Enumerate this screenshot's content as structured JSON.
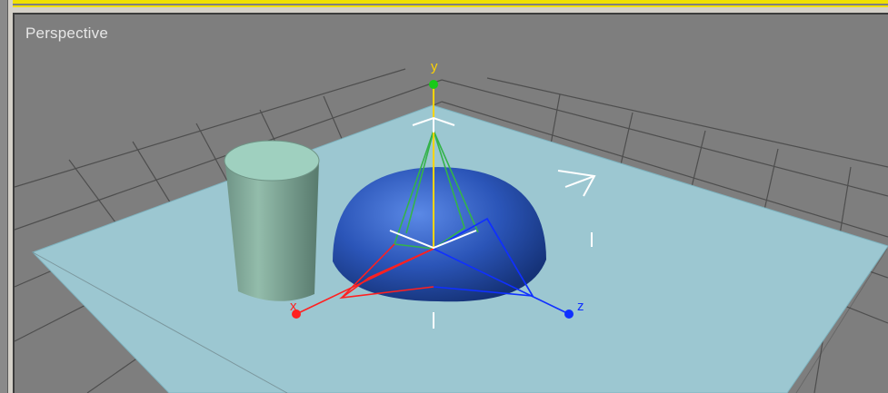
{
  "viewport": {
    "label": "Perspective",
    "active_border_color": "#f0e000",
    "background_color": "#7e7e7e",
    "grid_color": "#4a4a4a",
    "plane_color": "#9cc7d1",
    "cylinder_color": "#8fb8a8",
    "hemisphere_color": "#2b55b8"
  },
  "gizmo": {
    "x_label": "x",
    "y_label": "y",
    "z_label": "z",
    "x_color": "#ff2020",
    "y_color": "#ffd400",
    "z_color": "#1030ff"
  }
}
